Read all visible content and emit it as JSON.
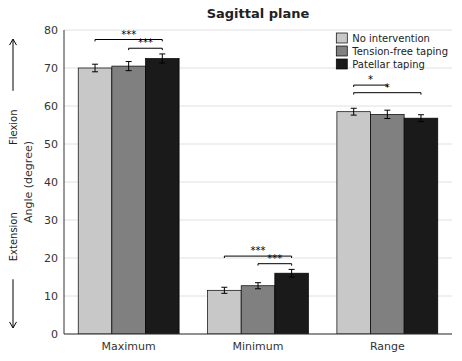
{
  "chart_data": {
    "type": "bar",
    "title": "Sagittal plane",
    "ylabel": "Angle (degree)",
    "categories": [
      "Maximum",
      "Minimum",
      "Range"
    ],
    "series": [
      {
        "name": "No intervention",
        "color": "#c8c8c8",
        "values": [
          70.0,
          11.5,
          58.5
        ],
        "errors": [
          1.0,
          0.8,
          0.9
        ]
      },
      {
        "name": "Tension-free taping",
        "color": "#808080",
        "values": [
          70.5,
          12.7,
          57.8
        ],
        "errors": [
          1.2,
          0.8,
          1.1
        ]
      },
      {
        "name": "Patellar taping",
        "color": "#1a1a1a",
        "values": [
          72.5,
          16.0,
          56.8
        ],
        "errors": [
          1.2,
          1.0,
          0.9
        ]
      }
    ],
    "ylim": [
      0,
      80
    ],
    "yticks": [
      0,
      10,
      20,
      30,
      40,
      50,
      60,
      70,
      80
    ],
    "grid": true,
    "legend": "upper right",
    "significance": [
      {
        "category": 0,
        "bars": [
          0,
          2
        ],
        "y": 77.5,
        "label": "***"
      },
      {
        "category": 0,
        "bars": [
          1,
          2
        ],
        "y": 75.2,
        "label": "***"
      },
      {
        "category": 1,
        "bars": [
          0,
          2
        ],
        "y": 20.5,
        "label": "***"
      },
      {
        "category": 1,
        "bars": [
          1,
          2
        ],
        "y": 18.5,
        "label": "***"
      },
      {
        "category": 2,
        "bars": [
          0,
          1
        ],
        "y": 65.5,
        "label": "*"
      },
      {
        "category": 2,
        "bars": [
          0,
          2
        ],
        "y": 63.5,
        "label": "*"
      }
    ],
    "annotations": [
      {
        "text": "Flexion"
      },
      {
        "text": "Extension"
      }
    ]
  }
}
